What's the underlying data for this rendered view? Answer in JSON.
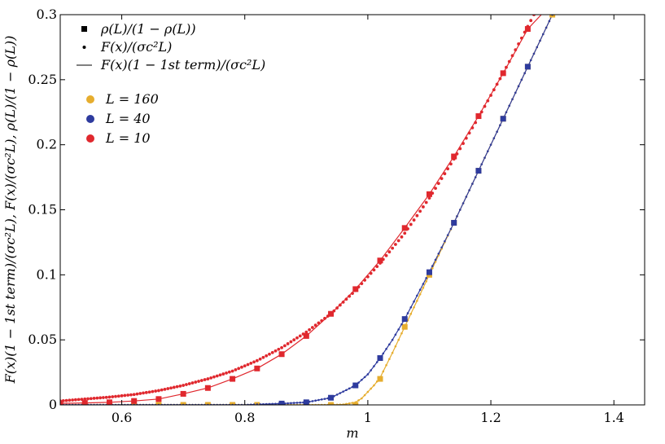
{
  "chart_data": {
    "type": "line",
    "xlabel": "m",
    "ylabel": "F(x)(1 − 1st term)/(σc²L), F(x)/(σc²L), ρ(L)/(1 − ρ(L))",
    "xlim": [
      0.5,
      1.45
    ],
    "ylim": [
      0,
      0.3
    ],
    "x_ticks": [
      "0.6",
      "0.8",
      "1",
      "1.2",
      "1.4"
    ],
    "y_ticks": [
      "0",
      "0.05",
      "0.1",
      "0.15",
      "0.2",
      "0.25",
      "0.3"
    ],
    "grid": false,
    "legend_position": "top-left",
    "legend_markers": [
      {
        "symbol": "square",
        "label": "ρ(L)/(1 − ρ(L))"
      },
      {
        "symbol": "dot",
        "label": "F(x)/(σc²L)"
      },
      {
        "symbol": "line",
        "label": "F(x)(1 − 1st term)/(σc²L)"
      }
    ],
    "series": [
      {
        "name": "L = 160",
        "color": "#E6AD2E",
        "squares": {
          "x": [
            0.5,
            0.54,
            0.58,
            0.62,
            0.66,
            0.7,
            0.74,
            0.78,
            0.82,
            0.86,
            0.9,
            0.94,
            0.98,
            1.02,
            1.06,
            1.1,
            1.14,
            1.18,
            1.22,
            1.26,
            1.3
          ],
          "y": [
            0,
            0,
            0,
            0,
            0,
            0,
            0,
            0,
            0,
            0,
            0,
            0,
            0,
            0.02,
            0.06,
            0.1,
            0.14,
            0.18,
            0.22,
            0.26,
            0.3
          ]
        },
        "curve": {
          "x": [
            0.5,
            0.94,
            0.96,
            0.98,
            0.99,
            1.0,
            1.01,
            1.02,
            1.04,
            1.06,
            1.1,
            1.14,
            1.18,
            1.22,
            1.26,
            1.3
          ],
          "y": [
            0,
            0,
            0.0003,
            0.002,
            0.005,
            0.01,
            0.015,
            0.021,
            0.04,
            0.06,
            0.1,
            0.14,
            0.18,
            0.22,
            0.26,
            0.3
          ]
        }
      },
      {
        "name": "L = 40",
        "color": "#2E3B9E",
        "squares": {
          "x": [
            0.86,
            0.9,
            0.94,
            0.98,
            1.02,
            1.06,
            1.1,
            1.14,
            1.18,
            1.22,
            1.26
          ],
          "y": [
            0.001,
            0.002,
            0.0055,
            0.015,
            0.036,
            0.066,
            0.102,
            0.14,
            0.18,
            0.22,
            0.26
          ]
        },
        "curve": {
          "x": [
            0.5,
            0.8,
            0.86,
            0.9,
            0.94,
            0.98,
            1.0,
            1.02,
            1.04,
            1.06,
            1.08,
            1.1,
            1.14,
            1.18,
            1.22,
            1.26,
            1.3
          ],
          "y": [
            0,
            0,
            0.001,
            0.002,
            0.0055,
            0.015,
            0.0235,
            0.036,
            0.05,
            0.066,
            0.084,
            0.102,
            0.14,
            0.18,
            0.22,
            0.26,
            0.3
          ]
        }
      },
      {
        "name": "L = 10",
        "color": "#E0282E",
        "squares": {
          "x": [
            0.5,
            0.54,
            0.58,
            0.62,
            0.66,
            0.7,
            0.74,
            0.78,
            0.82,
            0.86,
            0.9,
            0.94,
            0.98,
            1.02,
            1.06,
            1.1,
            1.14,
            1.18,
            1.22,
            1.26
          ],
          "y": [
            0.0012,
            0.0015,
            0.002,
            0.003,
            0.0045,
            0.0085,
            0.013,
            0.02,
            0.028,
            0.039,
            0.053,
            0.07,
            0.089,
            0.111,
            0.136,
            0.162,
            0.191,
            0.222,
            0.255,
            0.289
          ]
        },
        "curve": {
          "x": [
            0.5,
            0.54,
            0.58,
            0.62,
            0.66,
            0.7,
            0.74,
            0.78,
            0.82,
            0.86,
            0.9,
            0.94,
            0.98,
            1.02,
            1.06,
            1.1,
            1.14,
            1.18,
            1.22,
            1.26,
            1.282
          ],
          "y": [
            0.0012,
            0.0015,
            0.002,
            0.003,
            0.0045,
            0.0085,
            0.013,
            0.02,
            0.028,
            0.039,
            0.053,
            0.07,
            0.089,
            0.111,
            0.136,
            0.162,
            0.191,
            0.222,
            0.255,
            0.289,
            0.3
          ]
        },
        "dots": {
          "x": [
            0.5,
            0.54,
            0.58,
            0.62,
            0.66,
            0.7,
            0.74,
            0.78,
            0.82,
            0.86,
            0.9,
            0.94,
            0.98,
            1.02,
            1.06,
            1.1,
            1.14,
            1.18,
            1.22,
            1.26,
            1.27
          ],
          "y": [
            0.003,
            0.0045,
            0.006,
            0.008,
            0.011,
            0.015,
            0.02,
            0.026,
            0.034,
            0.044,
            0.056,
            0.07,
            0.088,
            0.109,
            0.132,
            0.159,
            0.189,
            0.221,
            0.255,
            0.291,
            0.3
          ]
        }
      }
    ]
  }
}
